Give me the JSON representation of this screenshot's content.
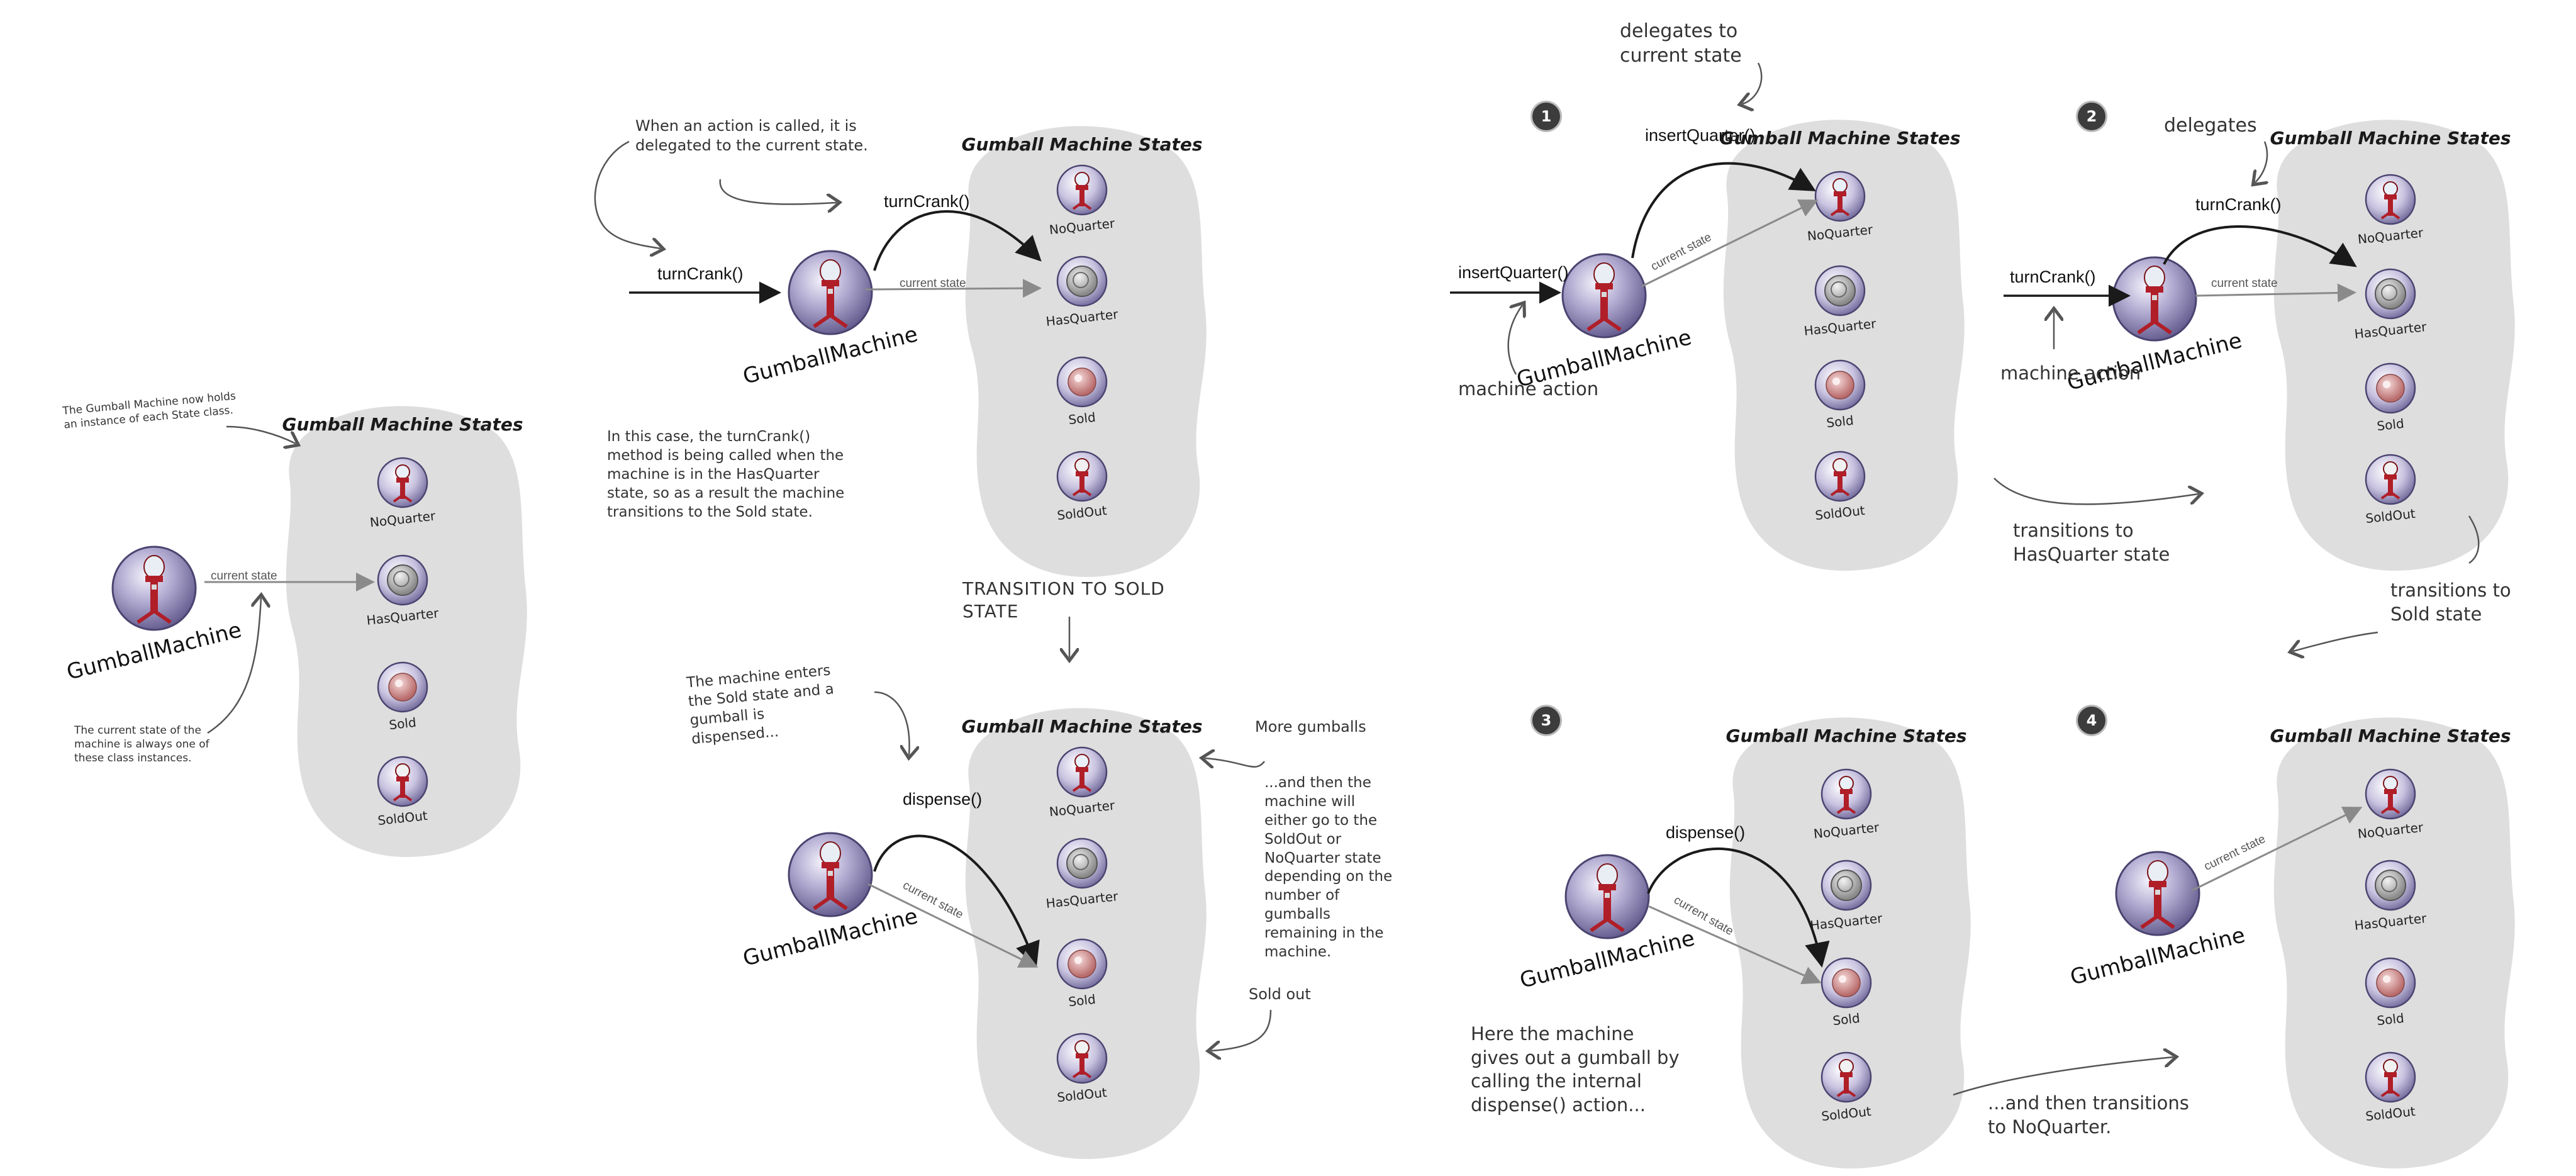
{
  "diagram": {
    "states_title": "Gumball Machine States",
    "state_names": [
      "NoQuarter",
      "HasQuarter",
      "Sold",
      "SoldOut"
    ],
    "machine_label": "GumballMachine",
    "current_state": "current state",
    "methods": {
      "turn_crank": "turnCrank()",
      "insert_quarter": "insertQuarter()",
      "dispense": "dispense()"
    },
    "steps": [
      "1",
      "2",
      "3",
      "4"
    ],
    "notes": {
      "holds_instance": "The Gumball Machine now holds an instance of each State class.",
      "current_state_one_of": "The current state of the machine is always one of these class instances.",
      "action_delegated": "When an action is called, it is delegated to the current state.",
      "in_this_case": "In this case, the turnCrank() method is being called when the machine is in the HasQuarter state, so as a result the machine transitions to the Sold state.",
      "transition_sold": "TRANSITION TO SOLD STATE",
      "enters_sold": "The machine enters the Sold state and a gumball is dispensed...",
      "more_gumballs": "More gumballs",
      "then_either": "...and then the machine will either go to the SoldOut or NoQuarter state depending on the number of gumballs remaining in the machine.",
      "sold_out": "Sold out",
      "delegates_to_current": "delegates to current state",
      "machine_action": "machine action",
      "delegates": "delegates",
      "transitions_hasquarter": "transitions to HasQuarter state",
      "transitions_sold": "transitions to Sold state",
      "gives_out": "Here the machine gives out a gumball by calling the internal dispense() action...",
      "then_noquarter": "...and then transitions to NoQuarter."
    }
  },
  "colors": {
    "blob": "#dedede",
    "machine_globe": "#8e86b4",
    "machine_base": "#b01e28",
    "arrow_dark": "#1a1a1a",
    "arrow_gray": "#8a8a8a"
  },
  "icons": {
    "machine": "gumball-machine-icon",
    "no_quarter": "gumball-machine-small-icon",
    "has_quarter": "quarter-coin-icon",
    "sold": "gumball-icon",
    "sold_out": "empty-machine-icon"
  }
}
